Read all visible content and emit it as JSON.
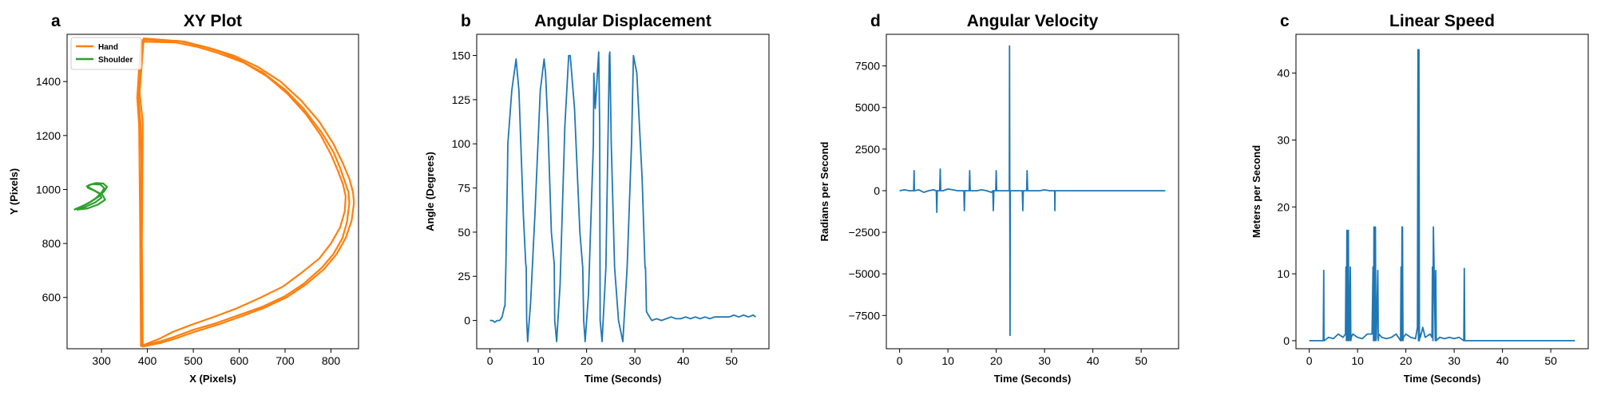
{
  "chart_data": [
    {
      "panel_letter": "a",
      "type": "line",
      "title": "XY Plot",
      "xlabel": "X (Pixels)",
      "ylabel": "Y (Pixels)",
      "xlim": [
        225,
        860
      ],
      "ylim": [
        410,
        1575
      ],
      "xticks": [
        300,
        400,
        500,
        600,
        700,
        800
      ],
      "yticks": [
        600,
        800,
        1000,
        1200,
        1400
      ],
      "grid": false,
      "legend_position": "top-left",
      "series": [
        {
          "name": "Hand",
          "color": "#ff7f0e",
          "loops": [
            {
              "x": [
                385,
                380,
                385,
                390,
                470,
                520,
                560,
                600,
                650,
                700,
                740,
                780,
                805,
                820,
                830,
                838,
                840,
                835,
                825,
                805,
                780,
                740,
                700,
                650,
                600,
                550,
                500,
                460,
                430,
                400,
                388,
                386,
                387,
                385
              ],
              "y": [
                1245,
                1350,
                1460,
                1555,
                1550,
                1530,
                1510,
                1480,
                1435,
                1370,
                1300,
                1210,
                1140,
                1080,
                1030,
                990,
                950,
                880,
                820,
                760,
                710,
                650,
                605,
                565,
                535,
                505,
                480,
                455,
                438,
                425,
                420,
                700,
                1100,
                1245
              ]
            },
            {
              "x": [
                390,
                383,
                388,
                392,
                480,
                540,
                590,
                640,
                690,
                735,
                775,
                805,
                825,
                840,
                848,
                850,
                845,
                832,
                812,
                785,
                745,
                705,
                655,
                605,
                555,
                505,
                465,
                430,
                402,
                390,
                388,
                390
              ],
              "y": [
                1250,
                1360,
                1470,
                1560,
                1548,
                1522,
                1495,
                1455,
                1400,
                1330,
                1250,
                1170,
                1100,
                1040,
                990,
                950,
                885,
                820,
                760,
                705,
                648,
                602,
                562,
                530,
                500,
                474,
                450,
                432,
                422,
                418,
                800,
                1250
              ]
            },
            {
              "x": [
                382,
                378,
                382,
                386,
                460,
                510,
                555,
                610,
                660,
                705,
                745,
                778,
                800,
                815,
                826,
                832,
                830,
                820,
                800,
                775,
                735,
                695,
                645,
                595,
                545,
                495,
                455,
                425,
                398,
                386,
                384,
                382
              ],
              "y": [
                1240,
                1340,
                1450,
                1548,
                1545,
                1528,
                1505,
                1470,
                1420,
                1355,
                1280,
                1200,
                1130,
                1070,
                1020,
                975,
                920,
                860,
                800,
                745,
                690,
                640,
                598,
                560,
                528,
                498,
                472,
                446,
                428,
                420,
                900,
                1240
              ]
            }
          ]
        },
        {
          "name": "Shoulder",
          "color": "#2ca02c",
          "loops": [
            {
              "x": [
                240,
                255,
                272,
                288,
                300,
                306,
                298,
                280,
                268,
                282,
                295,
                300,
                286,
                264,
                246
              ],
              "y": [
                925,
                935,
                950,
                968,
                988,
                1005,
                1018,
                1020,
                1012,
                998,
                985,
                970,
                952,
                935,
                924
              ]
            },
            {
              "x": [
                244,
                260,
                278,
                294,
                306,
                312,
                304,
                288,
                272,
                270,
                286,
                302,
                308,
                292,
                270,
                250
              ],
              "y": [
                928,
                940,
                956,
                974,
                994,
                1010,
                1022,
                1024,
                1016,
                1006,
                995,
                980,
                962,
                944,
                930,
                926
              ]
            }
          ]
        }
      ]
    },
    {
      "panel_letter": "b",
      "type": "line",
      "title": "Angular Displacement",
      "xlabel": "Time (Seconds)",
      "ylabel": "Angle (Degrees)",
      "xlim": [
        -2.75,
        57.75
      ],
      "ylim": [
        -16,
        162
      ],
      "xticks": [
        0,
        10,
        20,
        30,
        40,
        50
      ],
      "yticks": [
        0,
        25,
        50,
        75,
        100,
        125,
        150
      ],
      "grid": false,
      "series": [
        {
          "color": "#1f77b4",
          "x": [
            0,
            0.5,
            1,
            1.5,
            2,
            2.5,
            3,
            3.1,
            3.3,
            3.4,
            3.6,
            3.7,
            4.5,
            5.4,
            6,
            6.9,
            7.4,
            7.5,
            7.6,
            7.8,
            8.4,
            9.3,
            10.4,
            11.2,
            11.5,
            12,
            12.7,
            13.3,
            13.4,
            13.8,
            14.5,
            15.5,
            16.3,
            16.6,
            17.5,
            18.6,
            19.2,
            19.4,
            19.7,
            20.4,
            21.4,
            21.5,
            21.8,
            22.5,
            22.7,
            22.8,
            23.2,
            24,
            24.7,
            24.8,
            25.1,
            25.8,
            26.6,
            27.5,
            28.4,
            29.3,
            29.7,
            30.4,
            31.5,
            32.1,
            32.2,
            32.4,
            32.8,
            33.5,
            34.5,
            35.5,
            36.5,
            37.5,
            38.5,
            39.5,
            40.5,
            41.5,
            42.5,
            43.5,
            44.5,
            45.5,
            46.5,
            47.5,
            48.5,
            49.5,
            50.5,
            51.5,
            52.5,
            53.5,
            54.5,
            55
          ],
          "y": [
            0,
            0,
            -1,
            0,
            0,
            2,
            8,
            8,
            32,
            50,
            80,
            100,
            130,
            148,
            130,
            60,
            32,
            30,
            0,
            -12,
            10,
            60,
            130,
            148,
            140,
            110,
            50,
            32,
            0,
            -12,
            20,
            110,
            150,
            150,
            120,
            50,
            30,
            0,
            -12,
            15,
            100,
            140,
            120,
            152,
            110,
            0,
            -12,
            30,
            150,
            152,
            100,
            30,
            0,
            -12,
            30,
            100,
            150,
            140,
            80,
            30,
            30,
            5,
            3,
            0,
            1,
            0,
            1,
            2,
            1,
            1,
            2,
            1,
            2,
            1,
            2,
            1,
            2,
            2,
            2,
            2,
            3,
            2,
            3,
            2,
            3,
            2
          ]
        }
      ]
    },
    {
      "panel_letter": "d",
      "type": "line",
      "title": "Angular Velocity",
      "xlabel": "Time (Seconds)",
      "ylabel": "Radians per Second",
      "xlim": [
        -2.75,
        57.75
      ],
      "ylim": [
        -9500,
        9400
      ],
      "xticks": [
        0,
        10,
        20,
        30,
        40,
        50
      ],
      "yticks": [
        -7500,
        -5000,
        -2500,
        0,
        2500,
        5000,
        7500
      ],
      "grid": false,
      "series": [
        {
          "color": "#1f77b4",
          "x": [
            0,
            1,
            2,
            2.9,
            3.0,
            3.05,
            3.1,
            4,
            5,
            6,
            7,
            7.6,
            7.7,
            7.8,
            8.3,
            8.4,
            8.5,
            9,
            10,
            11,
            12,
            13,
            13.3,
            13.4,
            13.5,
            14.4,
            14.5,
            14.6,
            15,
            16,
            17,
            18,
            19,
            19.3,
            19.4,
            19.5,
            19.9,
            20,
            20.1,
            21,
            22,
            22.7,
            22.75,
            22.8,
            22.85,
            22.9,
            23.5,
            24,
            25,
            25.4,
            25.5,
            25.6,
            26.3,
            26.4,
            26.5,
            27,
            28,
            29,
            30,
            31,
            32.1,
            32.15,
            32.2,
            33,
            35,
            40,
            45,
            50,
            55
          ],
          "y": [
            0,
            50,
            0,
            0,
            1200,
            0,
            0,
            50,
            -100,
            0,
            50,
            0,
            -1300,
            0,
            0,
            1300,
            0,
            0,
            100,
            50,
            0,
            0,
            0,
            -1200,
            0,
            0,
            1200,
            0,
            0,
            0,
            50,
            0,
            -100,
            0,
            -1200,
            0,
            0,
            1200,
            0,
            0,
            0,
            0,
            8700,
            0,
            -8700,
            0,
            0,
            0,
            0,
            0,
            -1200,
            0,
            0,
            1200,
            0,
            0,
            0,
            0,
            50,
            0,
            0,
            -1200,
            0,
            0,
            0,
            0,
            0,
            0,
            0
          ]
        }
      ]
    },
    {
      "panel_letter": "c",
      "type": "line",
      "title": "Linear Speed",
      "xlabel": "Time (Seconds)",
      "ylabel": "Meters per Second",
      "xlim": [
        -2.75,
        57.75
      ],
      "ylim": [
        -1.2,
        45.8
      ],
      "xticks": [
        0,
        10,
        20,
        30,
        40,
        50
      ],
      "yticks": [
        0,
        10,
        20,
        30,
        40
      ],
      "grid": false,
      "series": [
        {
          "color": "#1f77b4",
          "x": [
            0,
            2.9,
            3.0,
            3.05,
            3.1,
            4,
            5,
            6,
            7,
            7.5,
            7.6,
            7.7,
            7.8,
            8,
            8.1,
            8.2,
            8.3,
            8.5,
            8.6,
            8.7,
            9,
            10,
            11,
            12,
            13,
            13.2,
            13.3,
            13.4,
            13.5,
            13.7,
            13.8,
            13.9,
            14.2,
            14.3,
            14.4,
            15,
            16,
            17,
            18,
            18.9,
            19.0,
            19.1,
            19.2,
            19.3,
            19.4,
            19.5,
            20,
            21,
            22,
            22.4,
            22.5,
            22.6,
            22.7,
            22.8,
            22.9,
            23,
            23.5,
            24,
            25,
            25.4,
            25.5,
            25.6,
            25.7,
            26.1,
            26.2,
            26.3,
            27,
            28,
            29,
            30,
            31,
            32,
            32.1,
            32.2,
            33,
            35,
            40,
            45,
            50,
            55
          ],
          "y": [
            0,
            0,
            10.5,
            0,
            0,
            0.5,
            0.3,
            1,
            0.5,
            1,
            11,
            0,
            16.5,
            0,
            16.5,
            1,
            0,
            11,
            0,
            0.5,
            1,
            0.5,
            0.3,
            1,
            1,
            11,
            0,
            17,
            0,
            17,
            0,
            0.5,
            10.5,
            0,
            1,
            0.5,
            0.3,
            0.5,
            1,
            0,
            11,
            0,
            17,
            17,
            0,
            0.5,
            1,
            0.5,
            0.3,
            2,
            43.5,
            0,
            43.5,
            0,
            1,
            0.5,
            2,
            0.5,
            1,
            0.5,
            11,
            0,
            17,
            0,
            10.5,
            0,
            0.5,
            0.3,
            0.5,
            0.3,
            0.5,
            0,
            10.8,
            0,
            0,
            0,
            0,
            0,
            0,
            0
          ]
        }
      ]
    }
  ]
}
